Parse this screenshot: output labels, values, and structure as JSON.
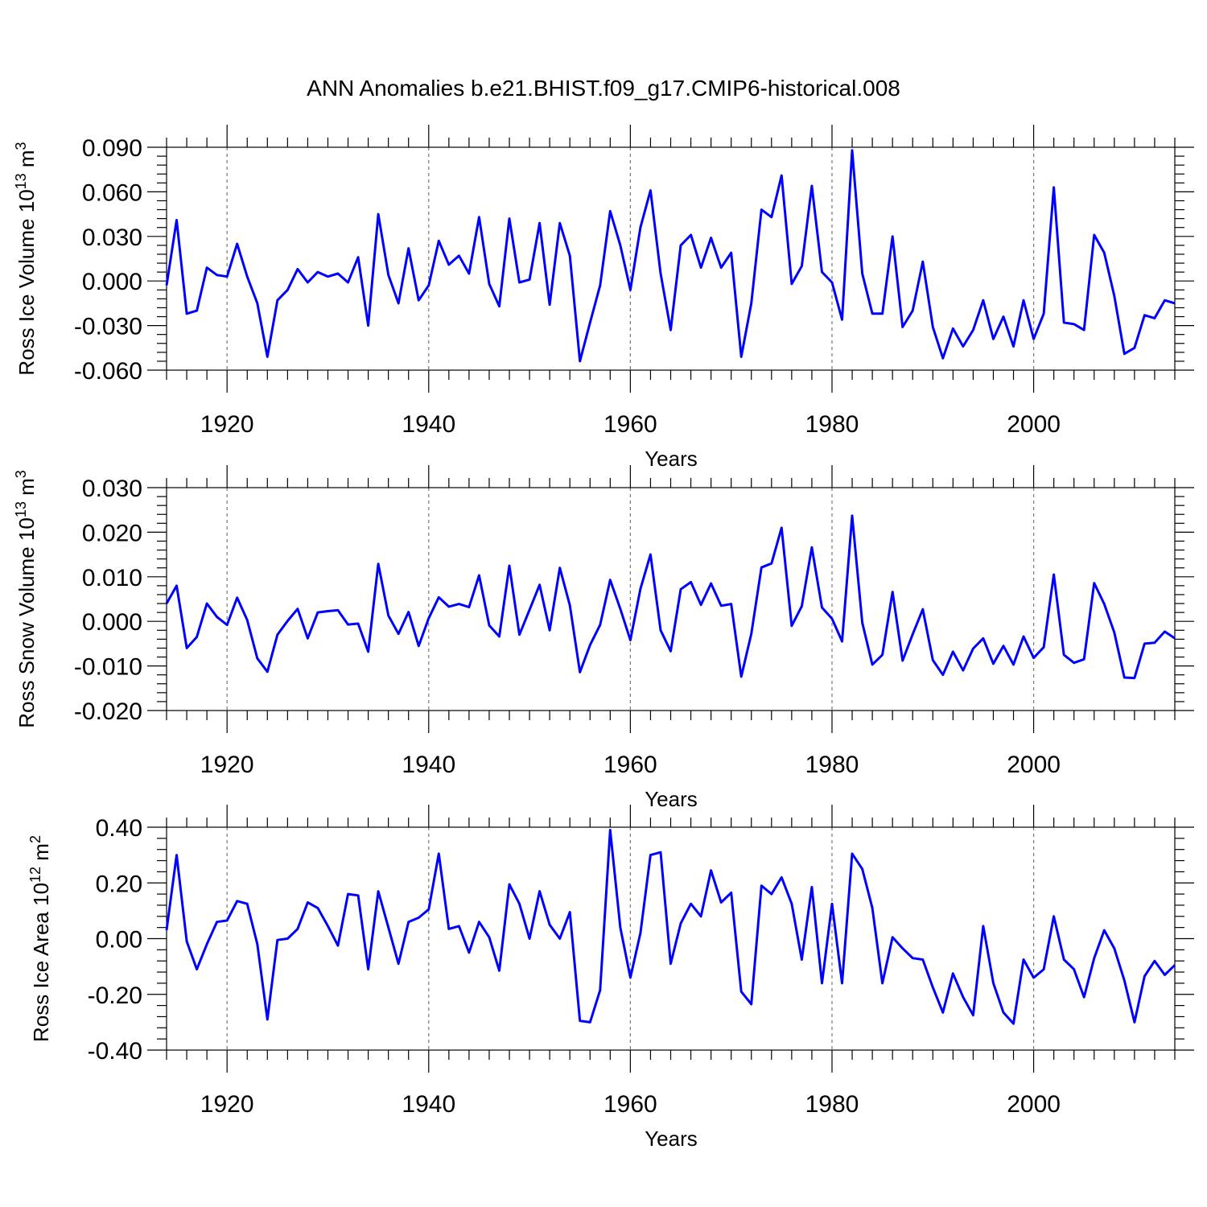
{
  "title": "ANN Anomalies b.e21.BHIST.f09_g17.CMIP6-historical.008",
  "colors": {
    "series": "#0000ff",
    "frame": "#000000",
    "grid": "#777777"
  },
  "chart_data": [
    {
      "type": "line",
      "title": "",
      "xlabel": "Years",
      "ylabel": "Ross Ice Volume 10",
      "ylabel_exponent": "13",
      "ylabel_unit": " m",
      "ylabel_unit_exponent": "3",
      "xlim": [
        1914,
        2014
      ],
      "ylim": [
        -0.06,
        0.09
      ],
      "yticks": [
        -0.06,
        -0.03,
        0.0,
        0.03,
        0.06,
        0.09
      ],
      "ytick_labels": [
        "-0.060",
        "-0.030",
        "0.000",
        "0.030",
        "0.060",
        "0.090"
      ],
      "xticks": [
        1920,
        1940,
        1960,
        1980,
        2000
      ],
      "xtick_labels": [
        "1920",
        "1940",
        "1960",
        "1980",
        "2000"
      ],
      "x_start": 1914,
      "series": [
        {
          "name": "Ross Ice Volume",
          "values": [
            -0.003,
            0.041,
            -0.022,
            -0.02,
            0.009,
            0.004,
            0.003,
            0.025,
            0.003,
            -0.015,
            -0.051,
            -0.013,
            -0.006,
            0.008,
            -0.001,
            0.006,
            0.003,
            0.005,
            -0.001,
            0.016,
            -0.03,
            0.045,
            0.004,
            -0.015,
            0.022,
            -0.013,
            -0.003,
            0.027,
            0.011,
            0.017,
            0.005,
            0.043,
            -0.002,
            -0.017,
            0.042,
            -0.001,
            0.001,
            0.039,
            -0.016,
            0.039,
            0.017,
            -0.054,
            -0.028,
            -0.003,
            0.047,
            0.024,
            -0.006,
            0.036,
            0.061,
            0.005,
            -0.033,
            0.024,
            0.031,
            0.009,
            0.029,
            0.009,
            0.019,
            -0.051,
            -0.015,
            0.048,
            0.043,
            0.071,
            -0.002,
            0.01,
            0.064,
            0.006,
            -0.001,
            -0.026,
            0.088,
            0.005,
            -0.022,
            -0.022,
            0.03,
            -0.031,
            -0.02,
            0.013,
            -0.031,
            -0.052,
            -0.032,
            -0.044,
            -0.033,
            -0.013,
            -0.039,
            -0.024,
            -0.044,
            -0.013,
            -0.039,
            -0.022,
            0.063,
            -0.028,
            -0.029,
            -0.033,
            0.031,
            0.019,
            -0.01,
            -0.049,
            -0.045,
            -0.023,
            -0.025,
            -0.013,
            -0.015
          ]
        }
      ]
    },
    {
      "type": "line",
      "title": "",
      "xlabel": "Years",
      "ylabel": "Ross Snow Volume 10",
      "ylabel_exponent": "13",
      "ylabel_unit": " m",
      "ylabel_unit_exponent": "3",
      "xlim": [
        1914,
        2014
      ],
      "ylim": [
        -0.02,
        0.03
      ],
      "yticks": [
        -0.02,
        -0.01,
        0.0,
        0.01,
        0.02,
        0.03
      ],
      "ytick_labels": [
        "-0.020",
        "-0.010",
        "0.000",
        "0.010",
        "0.020",
        "0.030"
      ],
      "xticks": [
        1920,
        1940,
        1960,
        1980,
        2000
      ],
      "xtick_labels": [
        "1920",
        "1940",
        "1960",
        "1980",
        "2000"
      ],
      "x_start": 1914,
      "series": [
        {
          "name": "Ross Snow Volume",
          "values": [
            0.004,
            0.008,
            -0.006,
            -0.0035,
            0.004,
            0.001,
            -0.0008,
            0.0053,
            0.0003,
            -0.0083,
            -0.0113,
            -0.003,
            0.0001,
            0.0028,
            -0.0038,
            0.002,
            0.0023,
            0.0025,
            -0.0007,
            -0.0005,
            -0.0068,
            0.0129,
            0.0013,
            -0.0028,
            0.0021,
            -0.0055,
            0.0007,
            0.0054,
            0.0033,
            0.0039,
            0.0032,
            0.0103,
            -0.0009,
            -0.0034,
            0.0125,
            -0.003,
            0.0026,
            0.0082,
            -0.002,
            0.012,
            0.0036,
            -0.0114,
            -0.0053,
            -0.0008,
            0.0093,
            0.0028,
            -0.0042,
            0.0073,
            0.015,
            -0.002,
            -0.0067,
            0.0072,
            0.0088,
            0.0037,
            0.0085,
            0.0035,
            0.0039,
            -0.0124,
            -0.0028,
            0.0121,
            0.013,
            0.021,
            -0.001,
            0.0034,
            0.0166,
            0.0031,
            0.0006,
            -0.0045,
            0.0237,
            -0.0003,
            -0.0097,
            -0.0075,
            0.0066,
            -0.0088,
            -0.0029,
            0.0027,
            -0.0087,
            -0.012,
            -0.0068,
            -0.011,
            -0.0061,
            -0.0038,
            -0.0095,
            -0.0055,
            -0.0097,
            -0.0034,
            -0.0082,
            -0.0058,
            0.0105,
            -0.0075,
            -0.0093,
            -0.0085,
            0.0086,
            0.0039,
            -0.0025,
            -0.0126,
            -0.0127,
            -0.005,
            -0.0048,
            -0.0023,
            -0.0038
          ]
        }
      ]
    },
    {
      "type": "line",
      "title": "",
      "xlabel": "Years",
      "ylabel": "Ross Ice Area 10",
      "ylabel_exponent": "12",
      "ylabel_unit": " m",
      "ylabel_unit_exponent": "2",
      "xlim": [
        1914,
        2014
      ],
      "ylim": [
        -0.4,
        0.4
      ],
      "yticks": [
        -0.4,
        -0.2,
        0.0,
        0.2,
        0.4
      ],
      "ytick_labels": [
        "-0.40",
        "-0.20",
        "0.00",
        "0.20",
        "0.40"
      ],
      "xticks": [
        1920,
        1940,
        1960,
        1980,
        2000
      ],
      "xtick_labels": [
        "1920",
        "1940",
        "1960",
        "1980",
        "2000"
      ],
      "x_start": 1914,
      "series": [
        {
          "name": "Ross Ice Area",
          "values": [
            0.03,
            0.3,
            -0.01,
            -0.11,
            -0.02,
            0.06,
            0.065,
            0.135,
            0.125,
            -0.02,
            -0.29,
            -0.005,
            0.0,
            0.035,
            0.13,
            0.11,
            0.045,
            -0.025,
            0.16,
            0.155,
            -0.11,
            0.17,
            0.04,
            -0.09,
            0.06,
            0.075,
            0.105,
            0.305,
            0.035,
            0.045,
            -0.05,
            0.06,
            0.005,
            -0.115,
            0.195,
            0.125,
            0.0,
            0.17,
            0.05,
            0.0,
            0.095,
            -0.295,
            -0.3,
            -0.185,
            0.39,
            0.04,
            -0.14,
            0.02,
            0.3,
            0.31,
            -0.09,
            0.055,
            0.125,
            0.08,
            0.245,
            0.13,
            0.165,
            -0.19,
            -0.235,
            0.19,
            0.16,
            0.22,
            0.125,
            -0.075,
            0.185,
            -0.16,
            0.125,
            -0.16,
            0.305,
            0.25,
            0.11,
            -0.16,
            0.005,
            -0.035,
            -0.07,
            -0.075,
            -0.175,
            -0.265,
            -0.125,
            -0.21,
            -0.275,
            0.045,
            -0.16,
            -0.265,
            -0.305,
            -0.075,
            -0.14,
            -0.11,
            0.08,
            -0.075,
            -0.11,
            -0.21,
            -0.07,
            0.03,
            -0.035,
            -0.15,
            -0.3,
            -0.135,
            -0.08,
            -0.13,
            -0.095
          ]
        }
      ]
    }
  ]
}
